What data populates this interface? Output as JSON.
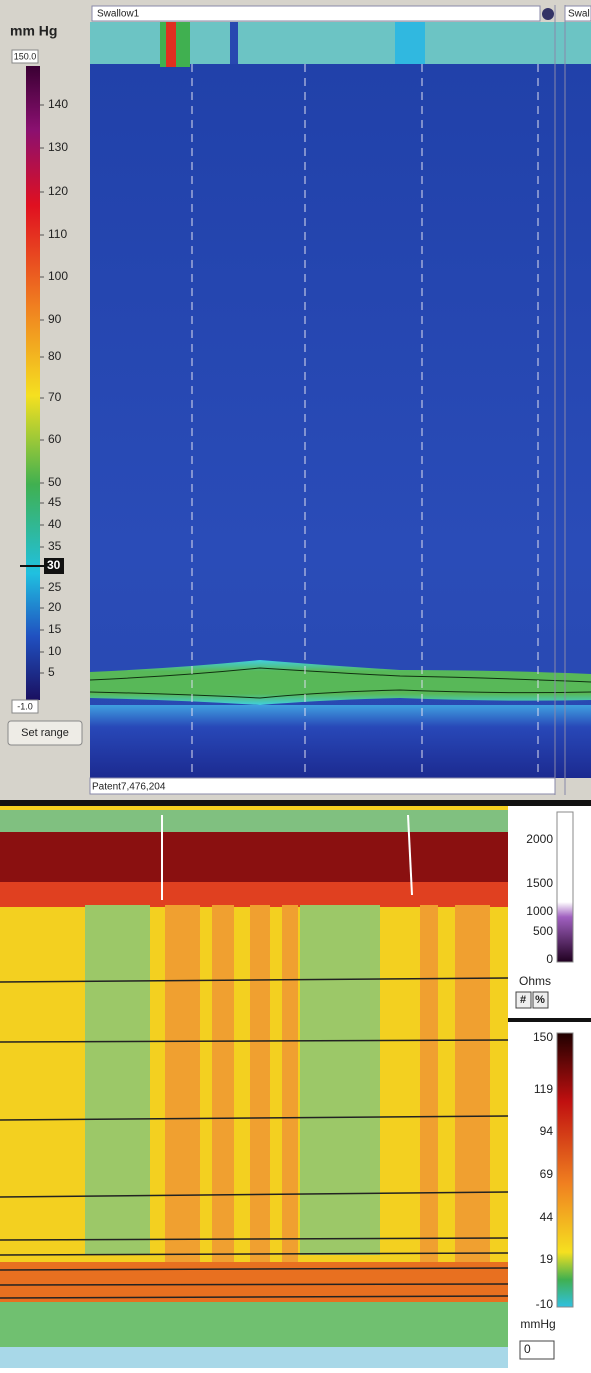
{
  "sidebar": {
    "unit": "mm Hg",
    "max": "150.0",
    "ticks": [
      "140",
      "130",
      "120",
      "110",
      "100",
      "90",
      "80",
      "70",
      "60",
      "50",
      "45",
      "40",
      "35",
      "30",
      "25",
      "20",
      "15",
      "10",
      "5"
    ],
    "min": "-1.0",
    "button": "Set range"
  },
  "header": {
    "tab1": "Swallow1",
    "tab2": "Swal"
  },
  "footer": "Patent7,476,204",
  "impedance_scale": {
    "ticks": [
      "2000",
      "1500",
      "1000",
      "500",
      "0"
    ],
    "unit": "Ohms",
    "buttons": [
      "#",
      "%"
    ]
  },
  "pressure_scale": {
    "ticks": [
      "150",
      "119",
      "94",
      "69",
      "44",
      "19",
      "-10"
    ],
    "unit": "mmHg",
    "input": "0"
  }
}
